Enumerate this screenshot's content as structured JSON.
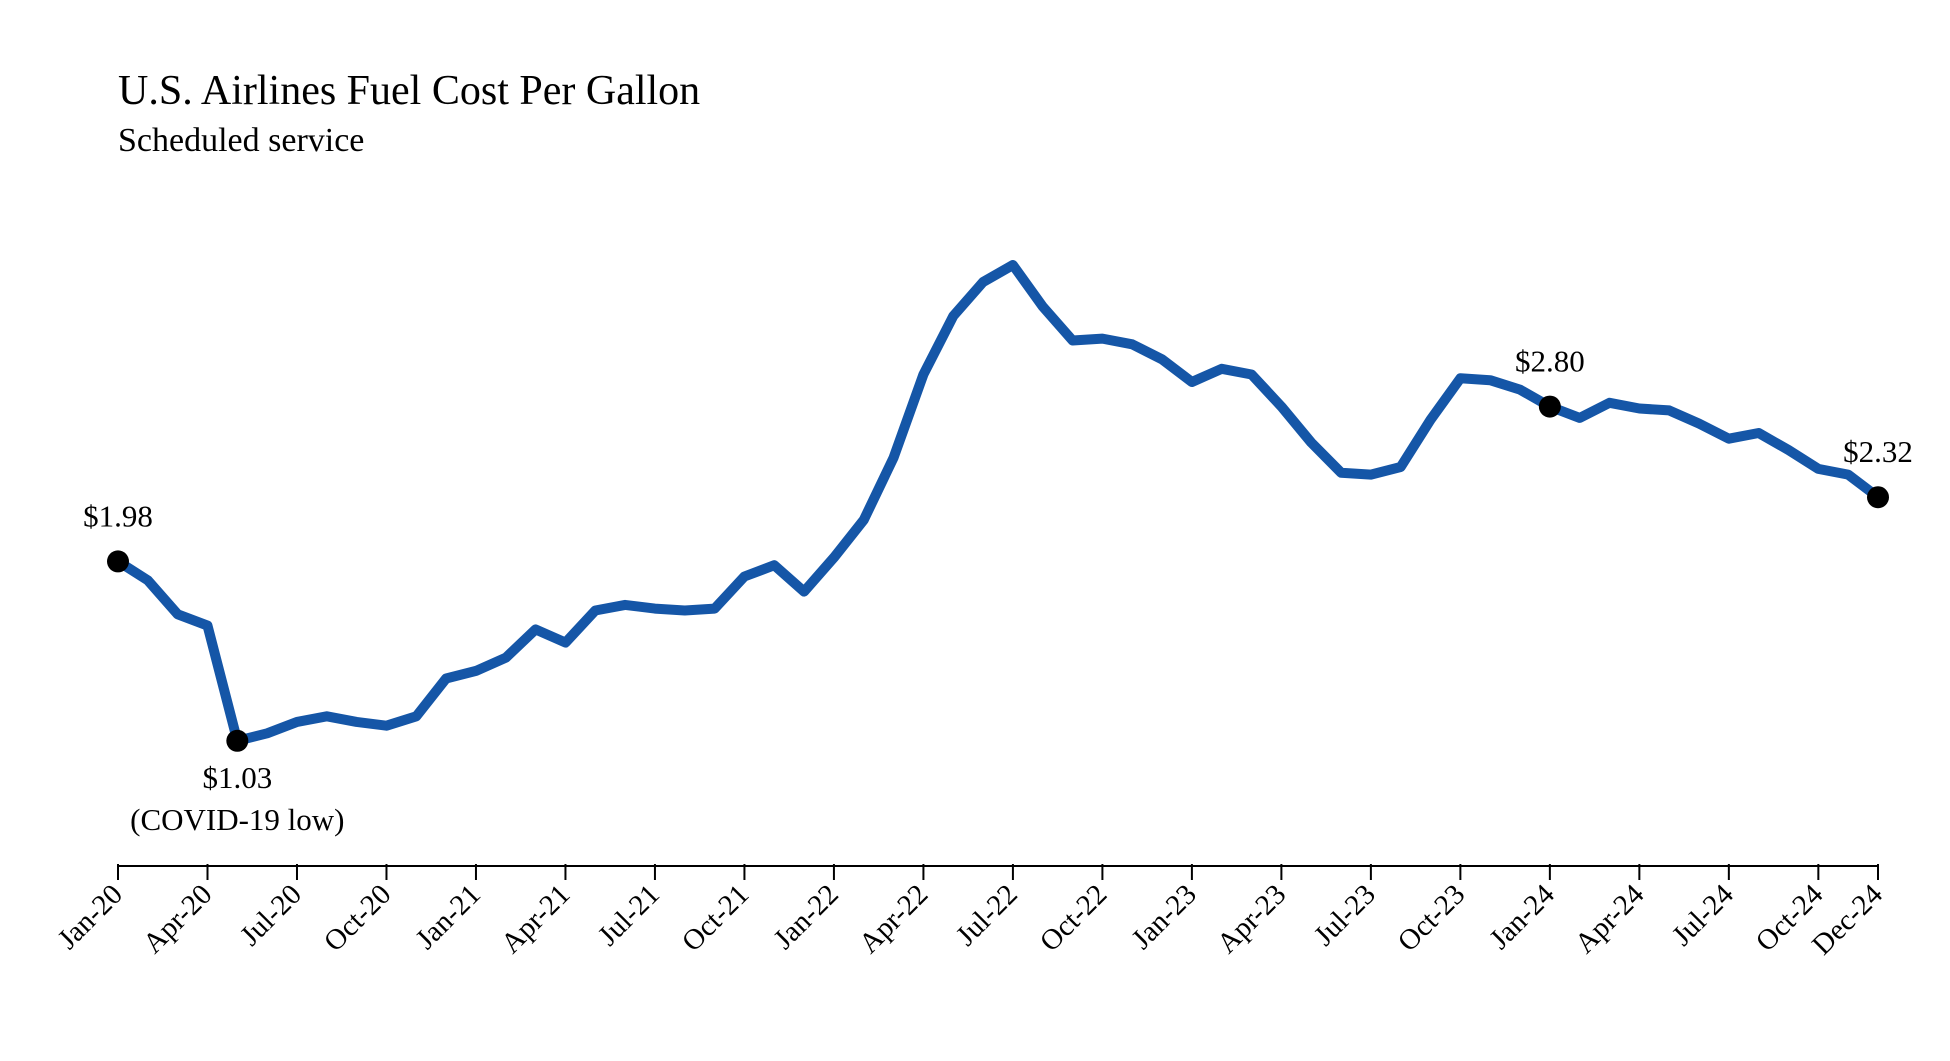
{
  "chart_data": {
    "type": "line",
    "title": "U.S. Airlines Fuel Cost Per Gallon",
    "subtitle": "Scheduled service",
    "xlabel": "",
    "ylabel": "",
    "ylim": [
      0.6,
      4.0
    ],
    "grid": false,
    "line_color": "#1556a7",
    "marker_color": "#000000",
    "x_ticks": [
      "Jan-20",
      "Apr-20",
      "Jul-20",
      "Oct-20",
      "Jan-21",
      "Apr-21",
      "Jul-21",
      "Oct-21",
      "Jan-22",
      "Apr-22",
      "Jul-22",
      "Oct-22",
      "Jan-23",
      "Apr-23",
      "Jul-23",
      "Oct-23",
      "Jan-24",
      "Apr-24",
      "Jul-24",
      "Oct-24",
      "Dec-24"
    ],
    "x_tick_index": [
      0,
      3,
      6,
      9,
      12,
      15,
      18,
      21,
      24,
      27,
      30,
      33,
      36,
      39,
      42,
      45,
      48,
      51,
      54,
      57,
      59
    ],
    "series": [
      {
        "name": "Fuel cost per gallon ($)",
        "values": [
          1.98,
          1.88,
          1.7,
          1.64,
          1.03,
          1.07,
          1.13,
          1.16,
          1.13,
          1.11,
          1.16,
          1.36,
          1.4,
          1.47,
          1.62,
          1.55,
          1.72,
          1.75,
          1.73,
          1.72,
          1.73,
          1.9,
          1.96,
          1.82,
          2.0,
          2.2,
          2.53,
          2.97,
          3.28,
          3.46,
          3.55,
          3.33,
          3.15,
          3.16,
          3.13,
          3.05,
          2.93,
          3.0,
          2.97,
          2.8,
          2.61,
          2.45,
          2.44,
          2.48,
          2.73,
          2.95,
          2.94,
          2.89,
          2.8,
          2.74,
          2.82,
          2.79,
          2.78,
          2.71,
          2.63,
          2.66,
          2.57,
          2.47,
          2.44,
          2.32
        ]
      }
    ],
    "annotations": [
      {
        "index": 0,
        "value_label": "$1.98",
        "note": "",
        "position": "above"
      },
      {
        "index": 4,
        "value_label": "$1.03",
        "note": "(COVID-19 low)",
        "position": "below"
      },
      {
        "index": 48,
        "value_label": "$2.80",
        "note": "",
        "position": "above"
      },
      {
        "index": 59,
        "value_label": "$2.32",
        "note": "",
        "position": "above"
      }
    ]
  }
}
